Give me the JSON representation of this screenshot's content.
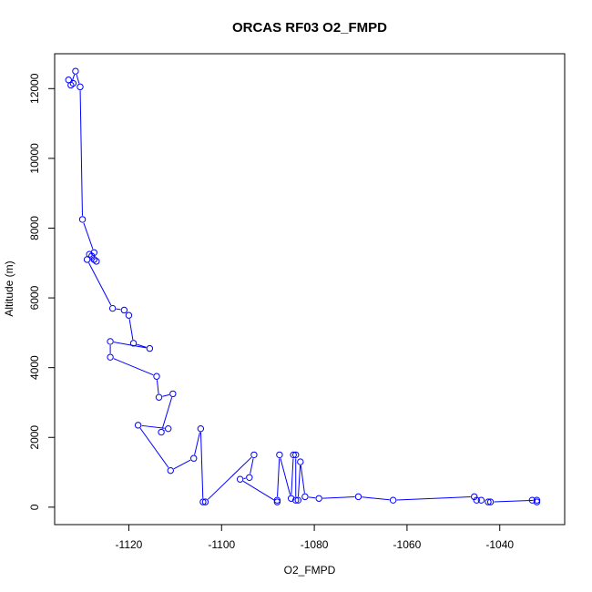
{
  "chart_data": {
    "type": "line",
    "title": "ORCAS RF03 O2_FMPD",
    "xlabel": "O2_FMPD",
    "ylabel": "Altitude (m)",
    "xlim": [
      -1136,
      -1026
    ],
    "ylim": [
      -500,
      13000
    ],
    "x_ticks": [
      -1120,
      -1100,
      -1080,
      -1060,
      -1040
    ],
    "y_ticks": [
      0,
      2000,
      4000,
      6000,
      8000,
      10000,
      12000
    ],
    "grid": false,
    "legend": "none",
    "series": [
      {
        "color": "#0000ff",
        "marker": "open-circle",
        "points": [
          [
            -1133.0,
            12250
          ],
          [
            -1132.0,
            12150
          ],
          [
            -1132.5,
            12100
          ],
          [
            -1131.5,
            12500
          ],
          [
            -1130.5,
            12050
          ],
          [
            -1130.0,
            8250
          ],
          [
            -1127.5,
            7300
          ],
          [
            -1128.0,
            7200
          ],
          [
            -1128.5,
            7250
          ],
          [
            -1127.5,
            7100
          ],
          [
            -1127.0,
            7050
          ],
          [
            -1129.0,
            7100
          ],
          [
            -1123.5,
            5700
          ],
          [
            -1121.0,
            5650
          ],
          [
            -1120.0,
            5500
          ],
          [
            -1119.0,
            4700
          ],
          [
            -1115.5,
            4550
          ],
          [
            -1124.0,
            4750
          ],
          [
            -1124.0,
            4300
          ],
          [
            -1114.0,
            3750
          ],
          [
            -1113.5,
            3150
          ],
          [
            -1110.5,
            3250
          ],
          [
            -1113.0,
            2150
          ],
          [
            -1111.5,
            2250
          ],
          [
            -1118.0,
            2350
          ],
          [
            -1111.0,
            1050
          ],
          [
            -1106.0,
            1400
          ],
          [
            -1104.5,
            2250
          ],
          [
            -1104.0,
            150
          ],
          [
            -1103.5,
            150
          ],
          [
            -1093.0,
            1500
          ],
          [
            -1094.0,
            850
          ],
          [
            -1096.0,
            800
          ],
          [
            -1088.0,
            150
          ],
          [
            -1088.0,
            200
          ],
          [
            -1087.5,
            1500
          ],
          [
            -1085.0,
            250
          ],
          [
            -1084.5,
            1500
          ],
          [
            -1084.0,
            1500
          ],
          [
            -1084.0,
            200
          ],
          [
            -1083.5,
            200
          ],
          [
            -1083.0,
            1300
          ],
          [
            -1082.0,
            300
          ],
          [
            -1079.0,
            250
          ],
          [
            -1070.5,
            300
          ],
          [
            -1063.0,
            200
          ],
          [
            -1045.5,
            300
          ],
          [
            -1045.0,
            200
          ],
          [
            -1044.0,
            200
          ],
          [
            -1042.5,
            150
          ],
          [
            -1042.0,
            150
          ],
          [
            -1032.0,
            200
          ],
          [
            -1032.0,
            150
          ],
          [
            -1033.0,
            200
          ]
        ]
      }
    ]
  }
}
